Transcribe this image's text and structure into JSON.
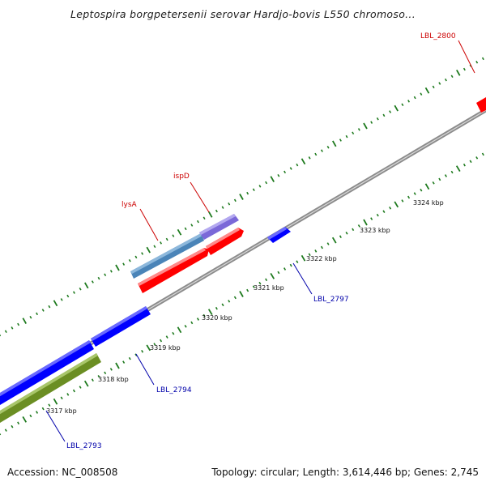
{
  "title": "Leptospira borgpetersenii serovar Hardjo-bovis L550 chromoso...",
  "footer": {
    "accession": "Accession: NC_008508",
    "summary": "Topology: circular; Length: 3,614,446 bp; Genes: 2,745"
  },
  "colors": {
    "backbone": "#8c8c8c",
    "tick": "#1e7a1e",
    "forward_label": "#cc0000",
    "reverse_label": "#0000aa",
    "red_gene": "#ff0000",
    "blue_gene": "#0000ff",
    "olive_gene": "#6b8e23",
    "steelblue_gene": "#4a84b8",
    "purple_gene": "#7b68d8"
  },
  "scale_labels": [
    "3317 kbp",
    "3318 kbp",
    "3319 kbp",
    "3320 kbp",
    "3321 kbp",
    "3322 kbp",
    "3323 kbp",
    "3324 kbp"
  ],
  "gene_labels": [
    {
      "text": "LBL_2800",
      "strand": "forward"
    },
    {
      "text": "ispD",
      "strand": "forward"
    },
    {
      "text": "lysA",
      "strand": "forward"
    },
    {
      "text": "LBL_2797",
      "strand": "reverse"
    },
    {
      "text": "LBL_2794",
      "strand": "reverse"
    },
    {
      "text": "LBL_2793",
      "strand": "reverse"
    }
  ]
}
